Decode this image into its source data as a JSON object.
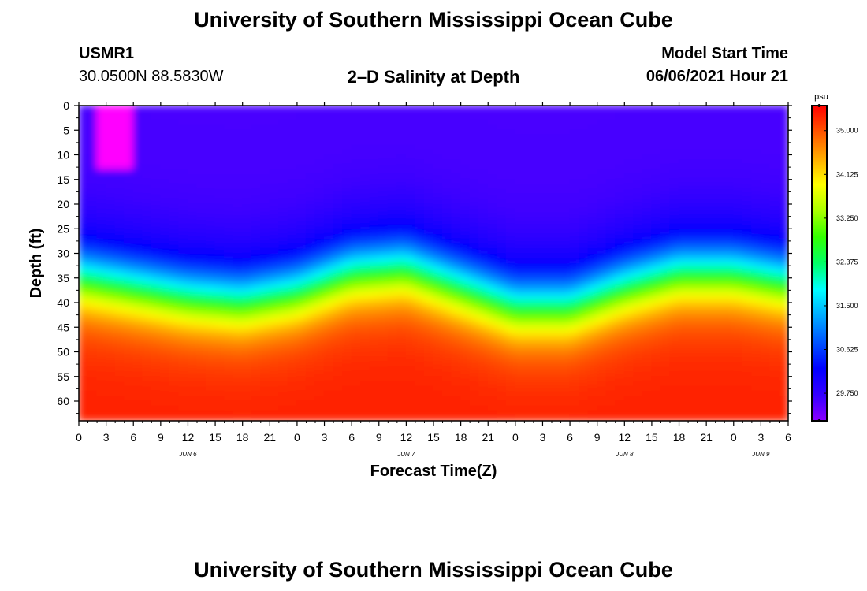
{
  "page": {
    "title_top": "University of Southern Mississippi Ocean Cube",
    "title_bottom": "University of Southern Mississippi Ocean Cube",
    "station_id": "USMR1",
    "coordinates": "30.0500N  88.5830W",
    "plot_title": "2–D Salinity at Depth",
    "model_start_label": "Model Start Time",
    "model_start_value": "06/06/2021 Hour 21"
  },
  "colors": {
    "ramp": [
      "#8a00ff",
      "#3300ff",
      "#0000ff",
      "#0055ff",
      "#00aaff",
      "#00ffff",
      "#00ff66",
      "#33ff00",
      "#aaff00",
      "#ffff00",
      "#ffaa00",
      "#ff5500",
      "#ff0000"
    ],
    "pocket": "#ff00ff"
  },
  "chart_data": {
    "type": "heatmap",
    "title": "2–D Salinity at Depth",
    "xlabel": "Forecast Time(Z)",
    "ylabel": "Depth (ft)",
    "x_tick_labels": [
      "0",
      "3",
      "6",
      "9",
      "12",
      "15",
      "18",
      "21",
      "0",
      "3",
      "6",
      "9",
      "12",
      "15",
      "18",
      "21",
      "0",
      "3",
      "6",
      "9",
      "12",
      "15",
      "18",
      "21",
      "0",
      "3",
      "6"
    ],
    "day_labels": [
      {
        "hour": 12,
        "label": "JUN 6"
      },
      {
        "hour": 36,
        "label": "JUN 7"
      },
      {
        "hour": 60,
        "label": "JUN 8"
      },
      {
        "hour": 75,
        "label": "JUN 9"
      }
    ],
    "xlim": [
      0,
      78
    ],
    "y_ticks": [
      0,
      5,
      10,
      15,
      20,
      25,
      30,
      35,
      40,
      45,
      50,
      55,
      60
    ],
    "ylim": [
      0,
      64
    ],
    "colorbar": {
      "unit": "psu",
      "range": [
        29.2,
        35.5
      ],
      "ticks": [
        "35.000",
        "34.125",
        "33.250",
        "32.375",
        "31.500",
        "30.625",
        "29.750"
      ],
      "tick_values": [
        35.0,
        34.125,
        33.25,
        32.375,
        31.5,
        30.625,
        29.75
      ]
    },
    "surface_salinity": 29.6,
    "bottom_salinity": 35.3,
    "halocline": {
      "hours": [
        0,
        6,
        12,
        18,
        24,
        30,
        36,
        42,
        48,
        54,
        60,
        66,
        72,
        78
      ],
      "mid_depth_ft": [
        35,
        37,
        39,
        40,
        38,
        34,
        33,
        37,
        41,
        41,
        37,
        34,
        34,
        36
      ]
    },
    "fresh_pocket": {
      "hours": [
        2.5,
        6
      ],
      "depth_ft": [
        0,
        13
      ],
      "salinity": 29.2
    }
  }
}
